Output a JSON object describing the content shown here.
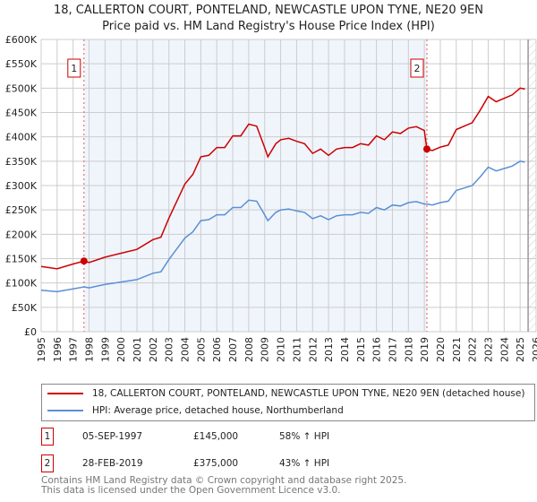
{
  "title": "18, CALLERTON COURT, PONTELAND, NEWCASTLE UPON TYNE, NE20 9EN",
  "subtitle": "Price paid vs. HM Land Registry's House Price Index (HPI)",
  "chart_data": {
    "type": "line",
    "ylim": [
      0,
      600000
    ],
    "xlim": [
      1995,
      2026
    ],
    "yticks": [
      "£0",
      "£50K",
      "£100K",
      "£150K",
      "£200K",
      "£250K",
      "£300K",
      "£350K",
      "£400K",
      "£450K",
      "£500K",
      "£550K",
      "£600K"
    ],
    "xticks": [
      "1995",
      "1996",
      "1997",
      "1998",
      "1999",
      "2000",
      "2001",
      "2002",
      "2003",
      "2004",
      "2005",
      "2006",
      "2007",
      "2008",
      "2009",
      "2010",
      "2011",
      "2012",
      "2013",
      "2014",
      "2015",
      "2016",
      "2017",
      "2018",
      "2019",
      "2020",
      "2021",
      "2022",
      "2023",
      "2024",
      "2025",
      "2026"
    ],
    "grid": true,
    "x": [
      1995,
      1996,
      1997,
      1997.7,
      1998,
      1999,
      2000,
      2001,
      2002,
      2002.5,
      2003,
      2003.5,
      2004,
      2004.5,
      2005,
      2005.5,
      2006,
      2006.5,
      2007,
      2007.5,
      2008,
      2008.5,
      2009,
      2009.2,
      2009.7,
      2010,
      2010.5,
      2011,
      2011.5,
      2012,
      2012.5,
      2013,
      2013.5,
      2014,
      2014.5,
      2015,
      2015.5,
      2016,
      2016.5,
      2017,
      2017.5,
      2018,
      2018.5,
      2019,
      2019.16,
      2019.5,
      2020,
      2020.5,
      2021,
      2021.5,
      2022,
      2022.5,
      2023,
      2023.5,
      2024,
      2024.5,
      2025,
      2025.3
    ],
    "series": [
      {
        "name": "18, CALLERTON COURT, PONTELAND, NEWCASTLE UPON TYNE, NE20 9EN (detached house)",
        "color": "#cc0000",
        "values": [
          134,
          129,
          139,
          145,
          142,
          153,
          161,
          169,
          189,
          194,
          233,
          268,
          303,
          323,
          359,
          362,
          378,
          378,
          402,
          402,
          426,
          422,
          378,
          359,
          386,
          394,
          397,
          391,
          386,
          366,
          375,
          362,
          375,
          378,
          378,
          386,
          383,
          402,
          394,
          410,
          407,
          418,
          421,
          413,
          375,
          372,
          379,
          383,
          415,
          422,
          429,
          455,
          483,
          472,
          479,
          486,
          500,
          498
        ]
      },
      {
        "name": "HPI: Average price, detached house, Northumberland",
        "color": "#5b8fd4",
        "values": [
          85,
          82,
          88,
          92,
          90,
          97,
          102,
          107,
          120,
          123,
          148,
          170,
          192,
          205,
          228,
          230,
          240,
          240,
          255,
          255,
          270,
          268,
          240,
          228,
          245,
          250,
          252,
          248,
          245,
          232,
          238,
          230,
          238,
          240,
          240,
          245,
          243,
          255,
          250,
          260,
          258,
          265,
          267,
          262,
          262,
          260,
          265,
          268,
          290,
          295,
          300,
          318,
          338,
          330,
          335,
          340,
          350,
          348
        ]
      }
    ],
    "value_unit": "thousand GBP",
    "sales": [
      {
        "label": "1",
        "x": 1997.68,
        "price": 145000,
        "date": "05-SEP-1997",
        "price_text": "£145,000",
        "hpi_text": "58% ↑ HPI"
      },
      {
        "label": "2",
        "x": 2019.16,
        "price": 375000,
        "date": "28-FEB-2019",
        "price_text": "£375,000",
        "hpi_text": "43% ↑ HPI"
      }
    ],
    "forecast_start": 2025.5,
    "legend_placement": "below"
  },
  "footer": {
    "line1": "Contains HM Land Registry data © Crown copyright and database right 2025.",
    "line2": "This data is licensed under the Open Government Licence v3.0."
  }
}
